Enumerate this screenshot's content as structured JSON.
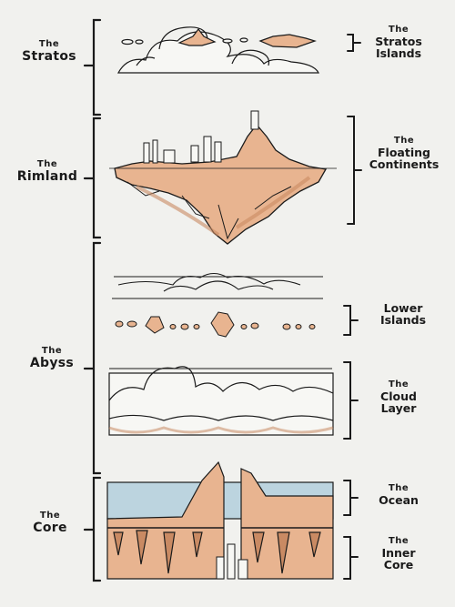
{
  "left_layers": [
    {
      "the": "The",
      "name": "Stratos"
    },
    {
      "the": "The",
      "name": "Rimland"
    },
    {
      "the": "The",
      "name": "Abyss"
    },
    {
      "the": "The",
      "name": "Core"
    }
  ],
  "right_features": [
    {
      "line1": "The",
      "line2": "Stratos",
      "line3": "Islands"
    },
    {
      "line1": "The",
      "line2": "Floating",
      "line3": "Continents"
    },
    {
      "line1": "Lower",
      "line2": "Islands"
    },
    {
      "line1": "The",
      "line2": "Cloud",
      "line3": "Layer"
    },
    {
      "line1": "The",
      "line2": "Ocean"
    },
    {
      "line1": "The",
      "line2": "Inner",
      "line3": "Core"
    }
  ],
  "colors": {
    "background": "#f1f1ee",
    "ink": "#1a1a1a",
    "rock_fill": "#e8b490",
    "rock_shade": "#c98a63",
    "sky_blue": "#bcd4df",
    "cloud_fill": "#f7f7f4"
  }
}
